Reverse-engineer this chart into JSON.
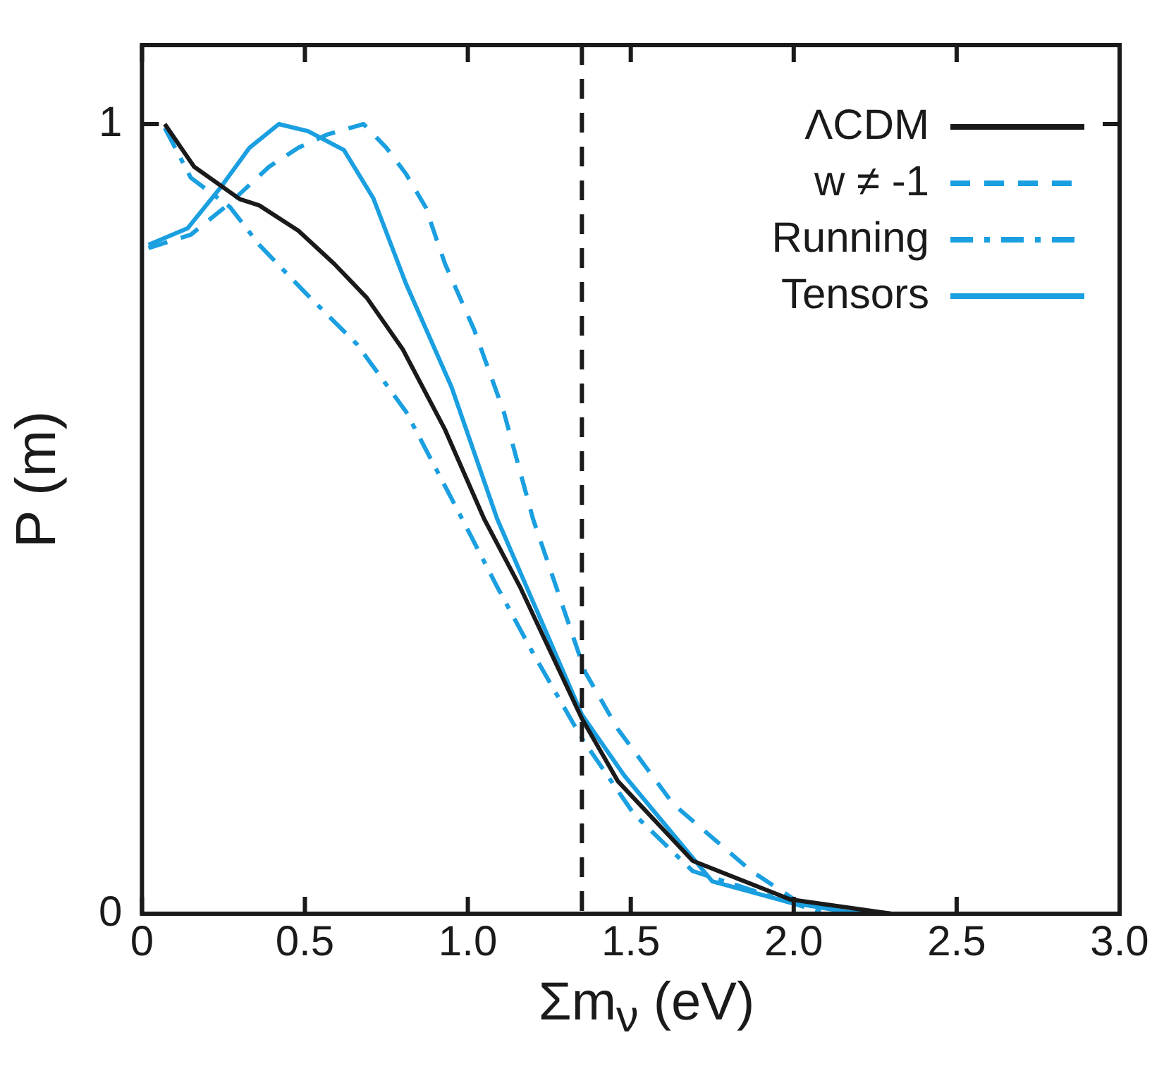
{
  "chart_data": {
    "type": "line",
    "xlabel": "Σm$_{ν}$ (eV)",
    "ylabel": "P (m)",
    "xlim": [
      0,
      3
    ],
    "xticks": [
      0,
      {
        "value": 0.5,
        "label": "0.5"
      },
      {
        "value": 1,
        "label": "1.0"
      },
      {
        "value": 1.5,
        "label": "1.5"
      },
      {
        "value": 2,
        "label": "2.0"
      },
      {
        "value": 2.5,
        "label": "2.5"
      },
      {
        "value": 3,
        "label": "3.0"
      }
    ],
    "ylim": [
      0,
      1.1
    ],
    "yticks": [
      0,
      1
    ],
    "grid": false,
    "legend": "top right",
    "marker": "none",
    "ref_lines": [
      {
        "axis": "x",
        "value": 1.35,
        "color": "#1a1a1a",
        "line_style": "dashed"
      }
    ],
    "series": [
      {
        "name": "ΛCDM",
        "color": "#1a1a1a",
        "line_style": "solid",
        "x": [
          0.07,
          0.16,
          0.3,
          0.36,
          0.48,
          0.59,
          0.69,
          0.8,
          0.93,
          1.05,
          1.16,
          1.35,
          1.46,
          1.69,
          1.99,
          2.3
        ],
        "values": [
          1.0,
          0.946,
          0.905,
          0.897,
          0.865,
          0.823,
          0.78,
          0.715,
          0.613,
          0.5,
          0.414,
          0.247,
          0.168,
          0.067,
          0.018,
          0
        ]
      },
      {
        "name": "w ≠ -1",
        "color": "#1a9fe0",
        "line_style": "dashed",
        "x": [
          0.02,
          0.15,
          0.27,
          0.39,
          0.48,
          0.57,
          0.68,
          0.75,
          0.81,
          0.87,
          0.93,
          1.02,
          1.11,
          1.2,
          1.36,
          1.46,
          1.63,
          1.87,
          2.02,
          2.3
        ],
        "values": [
          0.843,
          0.86,
          0.9,
          0.946,
          0.97,
          0.987,
          1.0,
          0.97,
          0.937,
          0.895,
          0.823,
          0.739,
          0.636,
          0.5,
          0.306,
          0.234,
          0.139,
          0.054,
          0.013,
          0
        ]
      },
      {
        "name": "Running",
        "color": "#1a9fe0",
        "line_style": "dashdot",
        "x": [
          0.07,
          0.15,
          0.27,
          0.36,
          0.5,
          0.66,
          0.81,
          0.97,
          1.09,
          1.2,
          1.35,
          1.51,
          1.69,
          1.96,
          2.1
        ],
        "values": [
          0.995,
          0.932,
          0.895,
          0.847,
          0.787,
          0.721,
          0.636,
          0.51,
          0.414,
          0.33,
          0.222,
          0.126,
          0.054,
          0.018,
          0
        ]
      },
      {
        "name": "Tensors",
        "color": "#1a9fe0",
        "line_style": "solid",
        "x": [
          0.02,
          0.14,
          0.24,
          0.33,
          0.42,
          0.51,
          0.62,
          0.71,
          0.81,
          0.95,
          1.09,
          1.35,
          1.48,
          1.75,
          1.99,
          2.2
        ],
        "values": [
          0.847,
          0.868,
          0.919,
          0.97,
          1.0,
          0.991,
          0.967,
          0.906,
          0.798,
          0.667,
          0.5,
          0.252,
          0.175,
          0.041,
          0.014,
          0
        ]
      }
    ]
  }
}
